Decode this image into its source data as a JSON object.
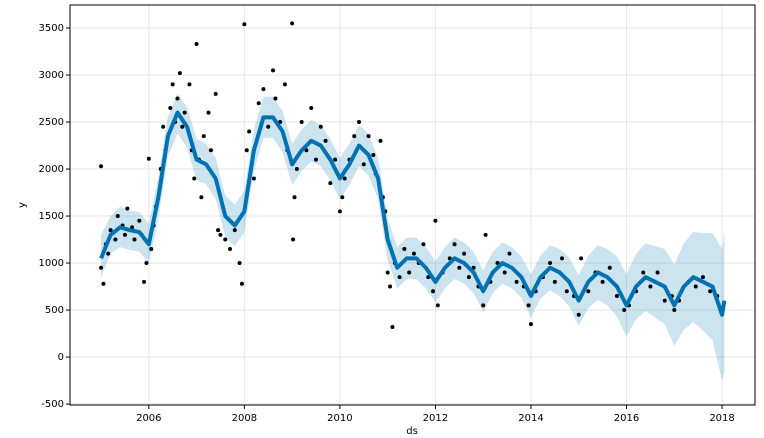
{
  "chart_data": {
    "type": "forecast",
    "x_label": "ds",
    "y_label": "y",
    "xlim": [
      2004.35,
      2018.69
    ],
    "ylim": [
      -510,
      3745
    ],
    "xticks": [
      2006,
      2008,
      2010,
      2012,
      2014,
      2016,
      2018
    ],
    "yticks": [
      -500,
      0,
      500,
      1000,
      1500,
      2000,
      2500,
      3000,
      3500
    ],
    "grid": true,
    "point_color": "#000000",
    "line_color": "#0072B2",
    "band_color": "#0072B2",
    "forecast": {
      "x": [
        2005.0,
        2005.2,
        2005.4,
        2005.6,
        2005.8,
        2006.0,
        2006.2,
        2006.4,
        2006.6,
        2006.8,
        2007.0,
        2007.2,
        2007.4,
        2007.6,
        2007.8,
        2008.0,
        2008.2,
        2008.4,
        2008.6,
        2008.8,
        2009.0,
        2009.2,
        2009.4,
        2009.6,
        2009.8,
        2010.0,
        2010.2,
        2010.4,
        2010.6,
        2010.8,
        2011.0,
        2011.2,
        2011.4,
        2011.6,
        2011.8,
        2012.0,
        2012.2,
        2012.4,
        2012.6,
        2012.8,
        2013.0,
        2013.2,
        2013.4,
        2013.6,
        2013.8,
        2014.0,
        2014.2,
        2014.4,
        2014.6,
        2014.8,
        2015.0,
        2015.2,
        2015.4,
        2015.6,
        2015.8,
        2016.0,
        2016.2,
        2016.4,
        2016.6,
        2016.8,
        2017.0,
        2017.2,
        2017.4,
        2017.6,
        2017.8,
        2018.0,
        2018.05
      ],
      "values": [
        1050,
        1300,
        1380,
        1350,
        1330,
        1200,
        1700,
        2350,
        2600,
        2450,
        2100,
        2050,
        1900,
        1500,
        1400,
        1550,
        2200,
        2550,
        2550,
        2400,
        2050,
        2200,
        2300,
        2250,
        2100,
        1900,
        2050,
        2250,
        2150,
        1900,
        1250,
        950,
        1050,
        1050,
        950,
        800,
        950,
        1050,
        1000,
        900,
        700,
        900,
        1000,
        950,
        850,
        650,
        850,
        950,
        900,
        800,
        600,
        800,
        900,
        850,
        750,
        550,
        750,
        850,
        800,
        750,
        550,
        750,
        850,
        800,
        750,
        450,
        600
      ],
      "lower": [
        850,
        1100,
        1170,
        1140,
        1120,
        1000,
        1480,
        2130,
        2380,
        2230,
        1880,
        1840,
        1680,
        1280,
        1180,
        1330,
        1980,
        2330,
        2330,
        2180,
        1830,
        1980,
        2080,
        2030,
        1880,
        1680,
        1830,
        2030,
        1930,
        1680,
        1030,
        730,
        830,
        830,
        730,
        580,
        730,
        830,
        780,
        680,
        480,
        680,
        780,
        730,
        630,
        420,
        620,
        710,
        650,
        540,
        330,
        520,
        610,
        550,
        430,
        220,
        400,
        490,
        420,
        350,
        120,
        290,
        370,
        280,
        180,
        -250,
        -150
      ],
      "upper": [
        1300,
        1500,
        1600,
        1560,
        1540,
        1420,
        1920,
        2560,
        2800,
        2660,
        2320,
        2270,
        2120,
        1720,
        1620,
        1770,
        2420,
        2770,
        2770,
        2620,
        2270,
        2420,
        2520,
        2470,
        2320,
        2120,
        2270,
        2470,
        2370,
        2120,
        1470,
        1170,
        1270,
        1270,
        1170,
        1020,
        1170,
        1270,
        1220,
        1120,
        920,
        1120,
        1220,
        1170,
        1070,
        880,
        1080,
        1190,
        1150,
        1060,
        870,
        1080,
        1190,
        1150,
        1070,
        880,
        1100,
        1210,
        1180,
        1150,
        980,
        1210,
        1330,
        1320,
        1320,
        1150,
        1350
      ]
    },
    "observed": {
      "x": [
        2005.0,
        2005.0,
        2005.05,
        2005.1,
        2005.15,
        2005.2,
        2005.3,
        2005.35,
        2005.45,
        2005.5,
        2005.55,
        2005.65,
        2005.7,
        2005.8,
        2005.85,
        2005.9,
        2005.95,
        2006.0,
        2006.05,
        2006.1,
        2006.15,
        2006.25,
        2006.3,
        2006.35,
        2006.45,
        2006.5,
        2006.55,
        2006.6,
        2006.65,
        2006.7,
        2006.75,
        2006.85,
        2006.9,
        2006.95,
        2007.0,
        2007.05,
        2007.1,
        2007.15,
        2007.25,
        2007.3,
        2007.4,
        2007.45,
        2007.5,
        2007.6,
        2007.7,
        2007.8,
        2007.9,
        2007.95,
        2008.0,
        2008.05,
        2008.1,
        2008.2,
        2008.3,
        2008.4,
        2008.5,
        2008.6,
        2008.65,
        2008.75,
        2008.85,
        2008.9,
        2009.0,
        2009.02,
        2009.05,
        2009.1,
        2009.2,
        2009.3,
        2009.4,
        2009.5,
        2009.6,
        2009.7,
        2009.8,
        2009.9,
        2010.0,
        2010.05,
        2010.1,
        2010.2,
        2010.3,
        2010.4,
        2010.5,
        2010.6,
        2010.7,
        2010.75,
        2010.85,
        2010.9,
        2010.95,
        2011.0,
        2011.05,
        2011.1,
        2011.15,
        2011.25,
        2011.35,
        2011.45,
        2011.55,
        2011.65,
        2011.75,
        2011.85,
        2011.95,
        2012.0,
        2012.05,
        2012.15,
        2012.3,
        2012.4,
        2012.5,
        2012.6,
        2012.7,
        2012.8,
        2012.9,
        2013.0,
        2013.05,
        2013.15,
        2013.3,
        2013.45,
        2013.55,
        2013.7,
        2013.85,
        2013.95,
        2014.0,
        2014.1,
        2014.25,
        2014.4,
        2014.5,
        2014.65,
        2014.75,
        2014.9,
        2015.0,
        2015.05,
        2015.2,
        2015.35,
        2015.5,
        2015.65,
        2015.8,
        2015.95,
        2016.05,
        2016.2,
        2016.35,
        2016.5,
        2016.65,
        2016.8,
        2016.95,
        2017.0,
        2017.1,
        2017.3,
        2017.45,
        2017.6,
        2017.75,
        2017.9
      ],
      "values": [
        950,
        2030,
        780,
        1200,
        1100,
        1350,
        1250,
        1500,
        1400,
        1300,
        1580,
        1380,
        1250,
        1450,
        1300,
        800,
        1000,
        2110,
        1150,
        1400,
        1600,
        2000,
        2450,
        2200,
        2650,
        2900,
        2500,
        2750,
        3020,
        2450,
        2600,
        2900,
        2200,
        1900,
        3330,
        2100,
        1700,
        2350,
        2600,
        2200,
        2800,
        1350,
        1300,
        1250,
        1150,
        1350,
        1000,
        780,
        3540,
        2200,
        2400,
        1900,
        2700,
        2850,
        2450,
        3050,
        2750,
        2500,
        2900,
        2200,
        3550,
        1250,
        1700,
        2000,
        2500,
        2200,
        2650,
        2100,
        2450,
        2300,
        1850,
        2100,
        1550,
        1700,
        1900,
        2100,
        2350,
        2500,
        2050,
        2350,
        2150,
        1950,
        2300,
        1700,
        1550,
        900,
        750,
        320,
        1000,
        850,
        1150,
        900,
        1100,
        1000,
        1200,
        850,
        700,
        1450,
        550,
        900,
        1050,
        1200,
        950,
        1100,
        850,
        950,
        750,
        550,
        1300,
        800,
        1000,
        900,
        1100,
        800,
        750,
        550,
        350,
        700,
        850,
        1000,
        800,
        1050,
        700,
        650,
        450,
        1050,
        700,
        900,
        800,
        950,
        650,
        500,
        550,
        700,
        900,
        750,
        900,
        600,
        650,
        500,
        600,
        800,
        750,
        850,
        700,
        650
      ]
    }
  }
}
